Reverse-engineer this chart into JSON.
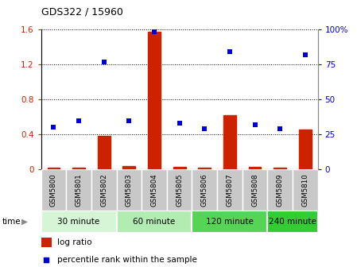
{
  "title": "GDS322 / 15960",
  "samples": [
    "GSM5800",
    "GSM5801",
    "GSM5802",
    "GSM5803",
    "GSM5804",
    "GSM5805",
    "GSM5806",
    "GSM5807",
    "GSM5808",
    "GSM5809",
    "GSM5810"
  ],
  "log_ratio": [
    0.02,
    0.02,
    0.38,
    0.04,
    1.57,
    0.03,
    0.02,
    0.62,
    0.03,
    0.02,
    0.46
  ],
  "percentile_rank": [
    30,
    35,
    77,
    35,
    98,
    33,
    29,
    84,
    32,
    29,
    82
  ],
  "groups": [
    {
      "label": "30 minute",
      "samples": [
        0,
        1,
        2
      ],
      "color": "#d6f5d6"
    },
    {
      "label": "60 minute",
      "samples": [
        3,
        4,
        5
      ],
      "color": "#b3ecb3"
    },
    {
      "label": "120 minute",
      "samples": [
        6,
        7,
        8
      ],
      "color": "#55d455"
    },
    {
      "label": "240 minute",
      "samples": [
        9,
        10
      ],
      "color": "#33cc33"
    }
  ],
  "log_ratio_color": "#cc2200",
  "percentile_color": "#0000cc",
  "sample_bg_color": "#c8c8c8",
  "ylim_left": [
    0,
    1.6
  ],
  "ylim_right": [
    0,
    100
  ],
  "yticks_left": [
    0,
    0.4,
    0.8,
    1.2,
    1.6
  ],
  "ytick_labels_left": [
    "0",
    "0.4",
    "0.8",
    "1.2",
    "1.6"
  ],
  "yticks_right": [
    0,
    25,
    50,
    75,
    100
  ],
  "ytick_labels_right": [
    "0",
    "25",
    "50",
    "75",
    "100%"
  ],
  "legend_log_ratio": "log ratio",
  "legend_percentile": "percentile rank within the sample",
  "time_label": "time",
  "bar_width": 0.5
}
